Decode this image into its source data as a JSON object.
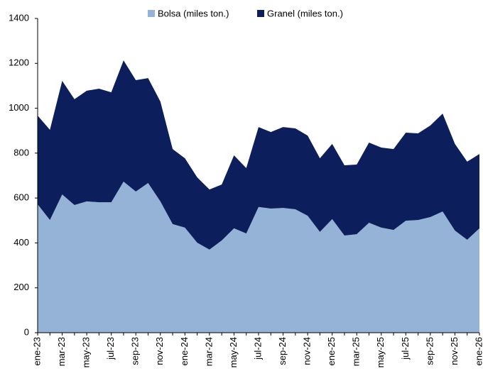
{
  "chart_data": {
    "type": "stacked_area",
    "categories": [
      "ene-23",
      null,
      "mar-23",
      null,
      "may-23",
      null,
      "jul-23",
      null,
      "sep-23",
      null,
      "nov-23",
      null,
      "ene-24",
      null,
      "mar-24",
      null,
      "may-24",
      null,
      "jul-24",
      null,
      "sep-24",
      null,
      "nov-24",
      null,
      "ene-25",
      null,
      "mar-25",
      null,
      "may-25",
      null,
      "jul-25",
      null,
      "sep-25",
      null,
      "nov-25",
      null,
      "ene-26"
    ],
    "series": [
      {
        "name": "Bolsa (miles ton.)",
        "color": "#95b3d7",
        "values": [
          572,
          502,
          616,
          569,
          585,
          581,
          581,
          673,
          629,
          667,
          585,
          484,
          468,
          401,
          370,
          411,
          465,
          442,
          560,
          553,
          556,
          550,
          521,
          449,
          506,
          433,
          439,
          490,
          468,
          458,
          499,
          502,
          515,
          540,
          455,
          414,
          465
        ]
      },
      {
        "name": "Granel (miles ton.)",
        "color": "#0c1e5b",
        "values": [
          395,
          402,
          506,
          471,
          493,
          506,
          490,
          540,
          496,
          467,
          445,
          334,
          309,
          291,
          268,
          249,
          325,
          291,
          356,
          341,
          360,
          360,
          357,
          328,
          335,
          313,
          310,
          357,
          357,
          360,
          392,
          386,
          408,
          436,
          386,
          348,
          331
        ]
      }
    ],
    "ylim": [
      0,
      1400
    ],
    "yticks": [
      0,
      200,
      400,
      600,
      800,
      1000,
      1200,
      1400
    ],
    "legend": "top"
  }
}
